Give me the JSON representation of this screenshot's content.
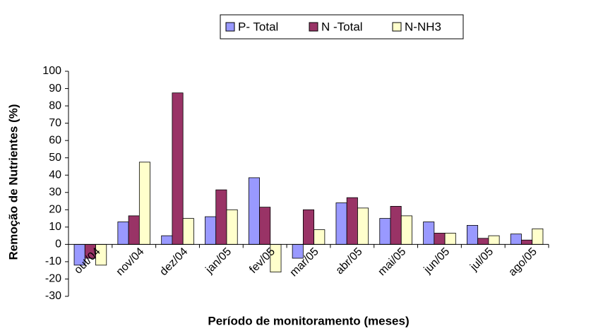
{
  "chart_data": {
    "type": "bar",
    "xlabel": "Período de monitoramento (meses)",
    "ylabel": "Remoção de Nutrientes (%)",
    "categories": [
      "out/04",
      "nov/04",
      "dez/04",
      "jan/05",
      "fev/05",
      "mar/05",
      "abr/05",
      "mai/05",
      "jun/05",
      "jul/05",
      "ago/05"
    ],
    "series": [
      {
        "name": "P- Total",
        "color": "#9999ff",
        "values": [
          -12,
          13,
          5,
          16,
          38.5,
          -8,
          24,
          15,
          13,
          11,
          6
        ]
      },
      {
        "name": "N -Total",
        "color": "#993366",
        "values": [
          -8,
          16.5,
          87.5,
          31.5,
          21.5,
          20,
          27,
          22,
          6.5,
          3.5,
          2.5
        ]
      },
      {
        "name": "N-NH3",
        "color": "#ffffcc",
        "values": [
          -12,
          47.5,
          15,
          20,
          -16,
          8.5,
          21,
          16.5,
          6.5,
          5,
          9
        ]
      }
    ],
    "ylim": [
      -30,
      100
    ],
    "yticks": [
      -30,
      -20,
      -10,
      0,
      10,
      20,
      30,
      40,
      50,
      60,
      70,
      80,
      90,
      100
    ],
    "grid": false,
    "legend": "top"
  }
}
